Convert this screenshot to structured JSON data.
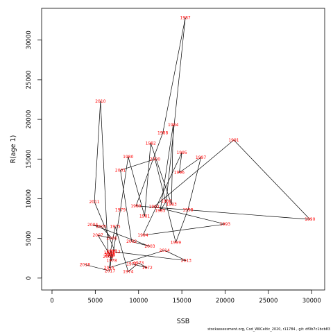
{
  "footer": "stockassessment.org, Cod_WKCeltic_2020, r11784 , git: df0b7c1bcb83",
  "chart_data": {
    "type": "line",
    "xlabel": "SSB",
    "ylabel": "R(age 1)",
    "xlim": [
      -1200,
      31500
    ],
    "ylim": [
      -1500,
      34000
    ],
    "xticks": [
      0,
      5000,
      10000,
      15000,
      20000,
      25000,
      30000
    ],
    "yticks": [
      0,
      5000,
      10000,
      15000,
      20000,
      25000,
      30000
    ],
    "grid": false,
    "line_color": "#000000",
    "label_color": "#ff0000",
    "points": [
      {
        "year": "1971",
        "x": 9200,
        "y": 1800
      },
      {
        "year": "1972",
        "x": 11000,
        "y": 1300
      },
      {
        "year": "1973",
        "x": 10000,
        "y": 1900
      },
      {
        "year": "1974",
        "x": 8800,
        "y": 800
      },
      {
        "year": "1975",
        "x": 7300,
        "y": 6500
      },
      {
        "year": "1976",
        "x": 6700,
        "y": 3000
      },
      {
        "year": "1977",
        "x": 6600,
        "y": 3200
      },
      {
        "year": "1978",
        "x": 6900,
        "y": 2200
      },
      {
        "year": "1979",
        "x": 7900,
        "y": 8600
      },
      {
        "year": "1980",
        "x": 8800,
        "y": 15300
      },
      {
        "year": "1981",
        "x": 10700,
        "y": 7800
      },
      {
        "year": "1982",
        "x": 11400,
        "y": 17000
      },
      {
        "year": "1983",
        "x": 13800,
        "y": 9300
      },
      {
        "year": "1984",
        "x": 14000,
        "y": 19300
      },
      {
        "year": "1985",
        "x": 12500,
        "y": 8500
      },
      {
        "year": "1986",
        "x": 13200,
        "y": 9700
      },
      {
        "year": "1987",
        "x": 15400,
        "y": 32800
      },
      {
        "year": "1988",
        "x": 12800,
        "y": 18300
      },
      {
        "year": "1989",
        "x": 9700,
        "y": 9100
      },
      {
        "year": "1990",
        "x": 29800,
        "y": 7400
      },
      {
        "year": "1991",
        "x": 21000,
        "y": 17400
      },
      {
        "year": "1992",
        "x": 11800,
        "y": 9000
      },
      {
        "year": "1993",
        "x": 20000,
        "y": 6800
      },
      {
        "year": "1994",
        "x": 10500,
        "y": 5400
      },
      {
        "year": "1995",
        "x": 15000,
        "y": 15800
      },
      {
        "year": "1996",
        "x": 14700,
        "y": 13300
      },
      {
        "year": "1997",
        "x": 17200,
        "y": 15200
      },
      {
        "year": "1998",
        "x": 15700,
        "y": 8600
      },
      {
        "year": "1999",
        "x": 14300,
        "y": 4500
      },
      {
        "year": "2000",
        "x": 11900,
        "y": 15000
      },
      {
        "year": "2001",
        "x": 7900,
        "y": 13600
      },
      {
        "year": "2002",
        "x": 9200,
        "y": 4600
      },
      {
        "year": "2003",
        "x": 11300,
        "y": 4000
      },
      {
        "year": "2004",
        "x": 4700,
        "y": 6700
      },
      {
        "year": "2005",
        "x": 5700,
        "y": 6500
      },
      {
        "year": "2006",
        "x": 6900,
        "y": 5000
      },
      {
        "year": "2007",
        "x": 5300,
        "y": 5400
      },
      {
        "year": "2008",
        "x": 6700,
        "y": 2900
      },
      {
        "year": "2009",
        "x": 6500,
        "y": 2700
      },
      {
        "year": "2010",
        "x": 5600,
        "y": 22300
      },
      {
        "year": "2011",
        "x": 4900,
        "y": 9600
      },
      {
        "year": "2012",
        "x": 7300,
        "y": 3300
      },
      {
        "year": "2013",
        "x": 15500,
        "y": 2200
      },
      {
        "year": "2014",
        "x": 13000,
        "y": 3500
      },
      {
        "year": "2015",
        "x": 6600,
        "y": 1300
      },
      {
        "year": "2016",
        "x": 6900,
        "y": 3400
      },
      {
        "year": "2017",
        "x": 6700,
        "y": 900
      },
      {
        "year": "2018",
        "x": 3800,
        "y": 1700
      }
    ]
  }
}
